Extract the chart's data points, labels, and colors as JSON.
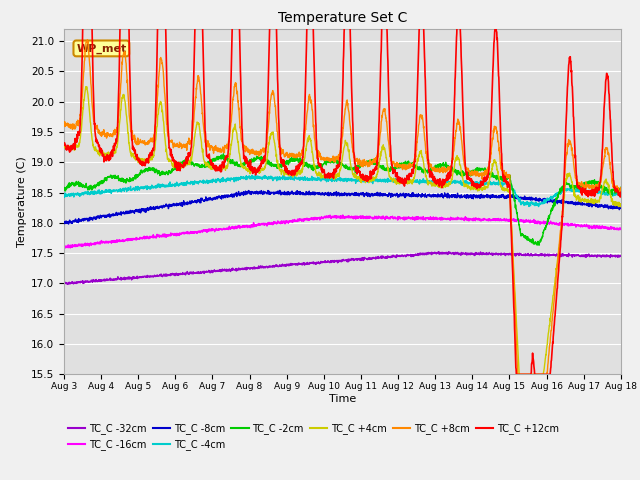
{
  "title": "Temperature Set C",
  "xlabel": "Time",
  "ylabel": "Temperature (C)",
  "ylim": [
    15.5,
    21.2
  ],
  "xlim": [
    0,
    15
  ],
  "x_tick_labels": [
    "Aug 3",
    "Aug 4",
    "Aug 5",
    "Aug 6",
    "Aug 7",
    "Aug 8",
    "Aug 9",
    "Aug 10",
    "Aug 11",
    "Aug 12",
    "Aug 13",
    "Aug 14",
    "Aug 15",
    "Aug 16",
    "Aug 17",
    "Aug 18"
  ],
  "bg_color": "#e0e0e0",
  "grid_color": "#ffffff",
  "fig_color": "#f0f0f0",
  "series": {
    "TC_C -32cm": {
      "color": "#9900cc",
      "lw": 1.0
    },
    "TC_C -16cm": {
      "color": "#ff00ff",
      "lw": 1.0
    },
    "TC_C -8cm": {
      "color": "#0000cc",
      "lw": 1.0
    },
    "TC_C -4cm": {
      "color": "#00cccc",
      "lw": 1.0
    },
    "TC_C -2cm": {
      "color": "#00cc00",
      "lw": 1.0
    },
    "TC_C +4cm": {
      "color": "#cccc00",
      "lw": 1.0
    },
    "TC_C +8cm": {
      "color": "#ff8800",
      "lw": 1.0
    },
    "TC_C +12cm": {
      "color": "#ff0000",
      "lw": 1.2
    }
  },
  "wp_met_box": {
    "text": "WP_met",
    "facecolor": "#ffff99",
    "edgecolor": "#cc8800",
    "textcolor": "#882200"
  },
  "legend_order": [
    "TC_C -32cm",
    "TC_C -16cm",
    "TC_C -8cm",
    "TC_C -4cm",
    "TC_C -2cm",
    "TC_C +4cm",
    "TC_C +8cm",
    "TC_C +12cm"
  ]
}
